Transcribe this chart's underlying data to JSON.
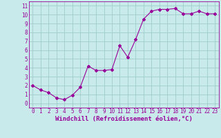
{
  "x": [
    0,
    1,
    2,
    3,
    4,
    5,
    6,
    7,
    8,
    9,
    10,
    11,
    12,
    13,
    14,
    15,
    16,
    17,
    18,
    19,
    20,
    21,
    22,
    23
  ],
  "y": [
    2.0,
    1.5,
    1.2,
    0.6,
    0.4,
    0.9,
    1.8,
    4.2,
    3.7,
    3.7,
    3.8,
    6.5,
    5.2,
    7.2,
    9.5,
    10.4,
    10.6,
    10.6,
    10.7,
    10.1,
    10.1,
    10.4,
    10.1,
    10.1
  ],
  "line_color": "#990099",
  "marker": "D",
  "marker_size": 2,
  "bg_color": "#c8eaea",
  "grid_color": "#a0cccc",
  "xlabel": "Windchill (Refroidissement éolien,°C)",
  "xlabel_color": "#990099",
  "xlim": [
    -0.5,
    23.5
  ],
  "ylim": [
    -0.5,
    11.5
  ],
  "yticks": [
    0,
    1,
    2,
    3,
    4,
    5,
    6,
    7,
    8,
    9,
    10,
    11
  ],
  "xticks": [
    0,
    1,
    2,
    3,
    4,
    5,
    6,
    7,
    8,
    9,
    10,
    11,
    12,
    13,
    14,
    15,
    16,
    17,
    18,
    19,
    20,
    21,
    22,
    23
  ],
  "tick_color": "#990099",
  "tick_fontsize": 5.5,
  "xlabel_fontsize": 6.5,
  "spine_color": "#990099",
  "linewidth": 0.8
}
